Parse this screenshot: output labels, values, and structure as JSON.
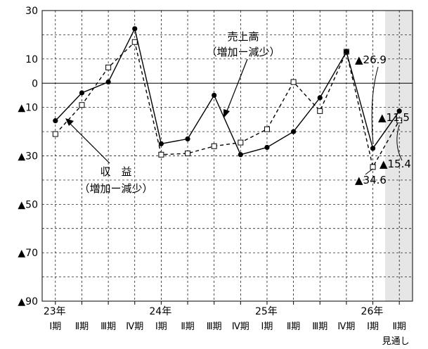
{
  "chart_data": {
    "type": "line",
    "ylim": [
      -90,
      30
    ],
    "y_ticks": [
      {
        "value": 30,
        "label": "30"
      },
      {
        "value": 10,
        "label": "10"
      },
      {
        "value": 0,
        "label": "0"
      },
      {
        "value": -10,
        "label": "▲10"
      },
      {
        "value": -30,
        "label": "▲30"
      },
      {
        "value": -50,
        "label": "▲50"
      },
      {
        "value": -70,
        "label": "▲70"
      },
      {
        "value": -90,
        "label": "▲90"
      }
    ],
    "categories": [
      "Ⅰ期",
      "Ⅱ期",
      "Ⅲ期",
      "Ⅳ期",
      "Ⅰ期",
      "Ⅱ期",
      "Ⅲ期",
      "Ⅳ期",
      "Ⅰ期",
      "Ⅱ期",
      "Ⅲ期",
      "Ⅳ期",
      "Ⅰ期",
      "Ⅱ期"
    ],
    "years": [
      {
        "label": "23年",
        "index": 0
      },
      {
        "label": "24年",
        "index": 4
      },
      {
        "label": "25年",
        "index": 8
      },
      {
        "label": "26年",
        "index": 12
      }
    ],
    "forecast_label": "見通し",
    "series": [
      {
        "name": "収　益（増加ー減少）",
        "name_line1": "収　益",
        "name_line2": "（増加ー減少）",
        "style": "solid",
        "marker": "filled-circle",
        "values": [
          -15.5,
          -4,
          0.5,
          22.5,
          -25,
          -23,
          -5,
          -29.5,
          -26.5,
          -20,
          -6,
          13,
          -26.9,
          -11.5
        ]
      },
      {
        "name": "売上高（増加ー減少）",
        "name_line1": "売上高",
        "name_line2": "（増加ー減少）",
        "style": "dashed",
        "marker": "open-square",
        "values": [
          -21,
          -9,
          6.5,
          17,
          -29.5,
          -29,
          -26,
          -24.5,
          -19,
          0.5,
          -11.5,
          13,
          -34.6,
          -15.4
        ]
      }
    ],
    "annotations": [
      {
        "text": "▲26.9"
      },
      {
        "text": "▲11.5"
      },
      {
        "text": "▲15.4"
      },
      {
        "text": "▲34.6"
      }
    ]
  }
}
